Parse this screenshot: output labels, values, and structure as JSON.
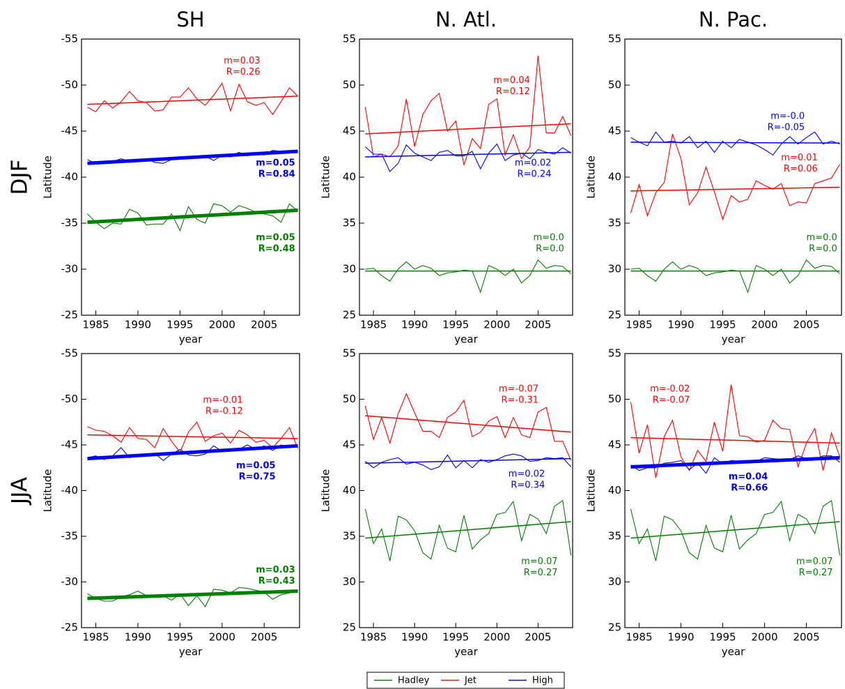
{
  "columns": [
    "SH",
    "N. Atl.",
    "N. Pac."
  ],
  "rows": [
    "DJF",
    "JJA"
  ],
  "legend": [
    "Hadley",
    "Jet",
    "High"
  ],
  "chart_data": [
    {
      "type": "line",
      "xlabel": "year",
      "ylabel": "Latitude",
      "x": [
        1984,
        1985,
        1986,
        1987,
        1988,
        1989,
        1990,
        1991,
        1992,
        1993,
        1994,
        1995,
        1996,
        1997,
        1998,
        1999,
        2000,
        2001,
        2002,
        2003,
        2004,
        2005,
        2006,
        2007,
        2008,
        2009
      ],
      "xlim": [
        1983.3,
        2009.2
      ],
      "xticks": [
        1985,
        1990,
        1995,
        2000,
        2005
      ],
      "ylim": [
        -25,
        -55
      ],
      "yticks": [
        -25,
        -30,
        -35,
        -40,
        -45,
        -50,
        -55
      ],
      "series": [
        {
          "color": "#008000",
          "bold": true,
          "values": [
            -36.0,
            -35.1,
            -34.4,
            -35.0,
            -34.9,
            -36.5,
            -36.1,
            -34.8,
            -34.9,
            -34.9,
            -36.0,
            -34.2,
            -36.8,
            -35.4,
            -35.0,
            -37.1,
            -36.9,
            -36.2,
            -36.9,
            -36.6,
            -36.2,
            -36.0,
            -35.8,
            -35.1,
            -37.1,
            -36.3
          ],
          "trend": [
            -35.1,
            -36.4
          ],
          "annotation": [
            "m=0.05",
            "R=0.48"
          ]
        },
        {
          "color": "#ff0000",
          "bold": false,
          "values": [
            -47.6,
            -47.1,
            -48.3,
            -47.5,
            -48.2,
            -49.3,
            -48.3,
            -48.1,
            -47.2,
            -47.3,
            -48.7,
            -48.7,
            -49.7,
            -48.5,
            -47.8,
            -48.9,
            -50.2,
            -47.2,
            -50.1,
            -48.2,
            -47.8,
            -48.1,
            -46.8,
            -48.2,
            -49.7,
            -48.8
          ],
          "trend": [
            -47.9,
            -48.8
          ],
          "annotation": [
            "m=0.03",
            "R=0.26"
          ]
        },
        {
          "color": "#0000ff",
          "bold": true,
          "values": [
            -41.9,
            -41.5,
            -41.7,
            -41.7,
            -42.0,
            -41.7,
            -41.8,
            -42.0,
            -41.6,
            -41.5,
            -41.9,
            -42.0,
            -42.0,
            -42.3,
            -42.3,
            -41.8,
            -42.4,
            -42.2,
            -42.7,
            -42.3,
            -42.6,
            -42.4,
            -42.9,
            -42.8,
            -42.8,
            -42.9
          ],
          "trend": [
            -41.5,
            -42.8
          ],
          "annotation": [
            "m=0.05",
            "R=0.84"
          ]
        }
      ]
    },
    {
      "type": "line",
      "xlabel": "year",
      "ylabel": "Latitude",
      "x": [
        1984,
        1985,
        1986,
        1987,
        1988,
        1989,
        1990,
        1991,
        1992,
        1993,
        1994,
        1995,
        1996,
        1997,
        1998,
        1999,
        2000,
        2001,
        2002,
        2003,
        2004,
        2005,
        2006,
        2007,
        2008,
        2009
      ],
      "xlim": [
        1983.3,
        2009.2
      ],
      "xticks": [
        1985,
        1990,
        1995,
        2000,
        2005
      ],
      "ylim": [
        25,
        55
      ],
      "yticks": [
        25,
        30,
        35,
        40,
        45,
        50,
        55
      ],
      "series": [
        {
          "color": "#008000",
          "bold": false,
          "values": [
            30.0,
            30.1,
            29.3,
            28.7,
            30.0,
            30.8,
            30.0,
            30.4,
            30.1,
            29.3,
            29.6,
            29.7,
            29.9,
            29.8,
            27.5,
            30.4,
            30.0,
            29.3,
            30.0,
            28.5,
            29.3,
            31.0,
            30.1,
            30.4,
            30.3,
            29.5
          ],
          "trend": [
            29.8,
            29.8
          ],
          "annotation": [
            "m=0.0",
            "R=0.0"
          ]
        },
        {
          "color": "#ff0000",
          "bold": false,
          "values": [
            47.6,
            42.2,
            42.5,
            42.2,
            43.4,
            48.5,
            43.3,
            46.8,
            48.3,
            49.1,
            45.0,
            46.1,
            41.3,
            44.2,
            43.1,
            47.9,
            48.5,
            42.4,
            44.6,
            42.0,
            43.3,
            53.2,
            44.8,
            44.8,
            46.6,
            44.5
          ],
          "trend": [
            44.7,
            45.8
          ],
          "annotation": [
            "m=0.04",
            "R=0.12"
          ]
        },
        {
          "color": "#0000ff",
          "bold": false,
          "values": [
            43.3,
            42.5,
            42.5,
            40.6,
            41.5,
            43.5,
            42.6,
            42.2,
            41.8,
            42.7,
            42.9,
            42.3,
            42.3,
            42.8,
            40.9,
            42.6,
            43.6,
            41.8,
            42.4,
            42.6,
            42.0,
            43.0,
            42.7,
            42.5,
            43.2,
            42.6
          ],
          "trend": [
            42.2,
            42.7
          ],
          "annotation": [
            "m=0.02",
            "R=0.24"
          ]
        }
      ]
    },
    {
      "type": "line",
      "xlabel": "year",
      "ylabel": "Latitude",
      "x": [
        1984,
        1985,
        1986,
        1987,
        1988,
        1989,
        1990,
        1991,
        1992,
        1993,
        1994,
        1995,
        1996,
        1997,
        1998,
        1999,
        2000,
        2001,
        2002,
        2003,
        2004,
        2005,
        2006,
        2007,
        2008,
        2009
      ],
      "xlim": [
        1983.3,
        2009.2
      ],
      "xticks": [
        1985,
        1990,
        1995,
        2000,
        2005
      ],
      "ylim": [
        25,
        55
      ],
      "yticks": [
        25,
        30,
        35,
        40,
        45,
        50,
        55
      ],
      "series": [
        {
          "color": "#008000",
          "bold": false,
          "values": [
            30.0,
            30.1,
            29.3,
            28.7,
            30.0,
            30.8,
            30.0,
            30.4,
            30.1,
            29.3,
            29.6,
            29.7,
            29.9,
            29.8,
            27.5,
            30.4,
            30.0,
            29.3,
            30.0,
            28.5,
            29.3,
            31.0,
            30.1,
            30.4,
            30.3,
            29.5
          ],
          "trend": [
            29.8,
            29.8
          ],
          "annotation": [
            "m=0.0",
            "R=0.0"
          ]
        },
        {
          "color": "#ff0000",
          "bold": false,
          "values": [
            36.1,
            39.2,
            35.8,
            38.3,
            39.4,
            44.7,
            42.0,
            37.0,
            38.3,
            41.1,
            38.4,
            35.4,
            38.0,
            37.3,
            37.6,
            39.6,
            39.1,
            38.7,
            39.3,
            36.9,
            37.3,
            37.2,
            39.3,
            39.6,
            39.9,
            41.4
          ],
          "trend": [
            38.5,
            38.9
          ],
          "annotation": [
            "m=0.01",
            "R=0.06"
          ]
        },
        {
          "color": "#0000ff",
          "bold": false,
          "values": [
            44.3,
            43.8,
            43.4,
            44.9,
            43.8,
            43.9,
            43.7,
            44.4,
            43.2,
            43.9,
            42.7,
            43.9,
            43.2,
            44.1,
            43.8,
            43.5,
            43.0,
            42.4,
            43.6,
            44.4,
            43.6,
            44.3,
            44.9,
            43.6,
            43.9,
            43.6
          ],
          "trend": [
            43.8,
            43.7
          ],
          "annotation": [
            "m=-0.0",
            "R=-0.05"
          ]
        }
      ]
    },
    {
      "type": "line",
      "xlabel": "year",
      "ylabel": "Latitude",
      "x": [
        1984,
        1985,
        1986,
        1987,
        1988,
        1989,
        1990,
        1991,
        1992,
        1993,
        1994,
        1995,
        1996,
        1997,
        1998,
        1999,
        2000,
        2001,
        2002,
        2003,
        2004,
        2005,
        2006,
        2007,
        2008,
        2009
      ],
      "xlim": [
        1983.3,
        2009.2
      ],
      "xticks": [
        1985,
        1990,
        1995,
        2000,
        2005
      ],
      "ylim": [
        -25,
        -55
      ],
      "yticks": [
        -25,
        -30,
        -35,
        -40,
        -45,
        -50,
        -55
      ],
      "series": [
        {
          "color": "#008000",
          "bold": true,
          "values": [
            -28.7,
            -28.2,
            -27.9,
            -27.9,
            -28.4,
            -28.6,
            -29.0,
            -28.5,
            -28.3,
            -28.5,
            -28.0,
            -28.7,
            -27.4,
            -28.5,
            -27.3,
            -29.2,
            -29.1,
            -28.8,
            -29.4,
            -29.3,
            -29.1,
            -28.9,
            -28.1,
            -28.6,
            -28.8,
            -29.1
          ],
          "trend": [
            -28.2,
            -29.0
          ],
          "annotation": [
            "m=0.03",
            "R=0.43"
          ]
        },
        {
          "color": "#ff0000",
          "bold": false,
          "values": [
            -47.0,
            -46.6,
            -46.5,
            -46.0,
            -45.3,
            -46.9,
            -45.7,
            -45.6,
            -44.7,
            -46.8,
            -45.4,
            -44.2,
            -46.4,
            -47.5,
            -45.4,
            -46.0,
            -46.3,
            -45.2,
            -46.6,
            -46.1,
            -45.3,
            -45.5,
            -44.7,
            -45.7,
            -46.9,
            -44.6
          ],
          "trend": [
            -46.1,
            -45.7
          ],
          "annotation": [
            "m=-0.01",
            "R=-0.12"
          ]
        },
        {
          "color": "#0000ff",
          "bold": true,
          "values": [
            -43.6,
            -43.8,
            -43.4,
            -43.8,
            -44.7,
            -43.6,
            -43.8,
            -43.8,
            -44.1,
            -43.3,
            -44.0,
            -44.5,
            -43.9,
            -43.8,
            -44.0,
            -44.9,
            -44.3,
            -44.3,
            -44.5,
            -45.0,
            -44.5,
            -44.9,
            -44.4,
            -45.0,
            -44.7,
            -45.0
          ],
          "trend": [
            -43.5,
            -44.9
          ],
          "annotation": [
            "m=0.05",
            "R=0.75"
          ]
        }
      ]
    },
    {
      "type": "line",
      "xlabel": "year",
      "ylabel": "Latitude",
      "x": [
        1984,
        1985,
        1986,
        1987,
        1988,
        1989,
        1990,
        1991,
        1992,
        1993,
        1994,
        1995,
        1996,
        1997,
        1998,
        1999,
        2000,
        2001,
        2002,
        2003,
        2004,
        2005,
        2006,
        2007,
        2008,
        2009
      ],
      "xlim": [
        1983.3,
        2009.2
      ],
      "xticks": [
        1985,
        1990,
        1995,
        2000,
        2005
      ],
      "ylim": [
        25,
        55
      ],
      "yticks": [
        25,
        30,
        35,
        40,
        45,
        50,
        55
      ],
      "series": [
        {
          "color": "#008000",
          "bold": false,
          "values": [
            38.0,
            34.2,
            35.8,
            32.3,
            37.2,
            36.8,
            35.6,
            33.2,
            32.5,
            36.2,
            33.7,
            33.3,
            37.3,
            33.6,
            34.6,
            35.3,
            37.4,
            37.6,
            38.8,
            34.5,
            37.4,
            36.9,
            35.3,
            38.3,
            38.9,
            32.9
          ],
          "trend": [
            34.8,
            36.6
          ],
          "annotation": [
            "m=0.07",
            "R=0.27"
          ]
        },
        {
          "color": "#ff0000",
          "bold": false,
          "values": [
            49.3,
            45.6,
            48.0,
            45.2,
            48.4,
            50.6,
            48.5,
            46.5,
            46.5,
            45.8,
            48.0,
            48.6,
            49.9,
            45.9,
            46.4,
            47.6,
            48.1,
            45.8,
            48.0,
            46.1,
            45.8,
            48.6,
            49.1,
            45.4,
            45.4,
            43.3
          ],
          "trend": [
            48.2,
            46.4
          ],
          "annotation": [
            "m=-0.07",
            "R=-0.31"
          ]
        },
        {
          "color": "#0000ff",
          "bold": false,
          "values": [
            43.2,
            42.5,
            43.1,
            43.4,
            43.6,
            42.9,
            43.1,
            42.8,
            42.3,
            42.6,
            43.9,
            42.5,
            43.3,
            42.5,
            43.4,
            43.1,
            43.4,
            43.8,
            44.0,
            43.8,
            43.2,
            43.3,
            43.6,
            43.5,
            43.6,
            42.6
          ],
          "trend": [
            43.0,
            43.5
          ],
          "annotation": [
            "m=0.02",
            "R=0.34"
          ]
        }
      ]
    },
    {
      "type": "line",
      "xlabel": "year",
      "ylabel": "Latitude",
      "x": [
        1984,
        1985,
        1986,
        1987,
        1988,
        1989,
        1990,
        1991,
        1992,
        1993,
        1994,
        1995,
        1996,
        1997,
        1998,
        1999,
        2000,
        2001,
        2002,
        2003,
        2004,
        2005,
        2006,
        2007,
        2008,
        2009
      ],
      "xlim": [
        1983.3,
        2009.2
      ],
      "xticks": [
        1985,
        1990,
        1995,
        2000,
        2005
      ],
      "ylim": [
        25,
        55
      ],
      "yticks": [
        25,
        30,
        35,
        40,
        45,
        50,
        55
      ],
      "series": [
        {
          "color": "#008000",
          "bold": false,
          "values": [
            38.0,
            34.2,
            35.8,
            32.3,
            37.2,
            36.8,
            35.6,
            33.2,
            32.5,
            36.2,
            33.7,
            33.3,
            37.3,
            33.6,
            34.6,
            35.3,
            37.4,
            37.6,
            38.8,
            34.5,
            37.4,
            36.9,
            35.3,
            38.3,
            38.9,
            32.9
          ],
          "trend": [
            34.8,
            36.6
          ],
          "annotation": [
            "m=0.07",
            "R=0.27"
          ]
        },
        {
          "color": "#ff0000",
          "bold": false,
          "values": [
            49.7,
            44.1,
            47.2,
            41.4,
            45.9,
            47.7,
            43.7,
            42.2,
            44.4,
            43.2,
            47.5,
            44.3,
            51.6,
            46.0,
            45.9,
            45.3,
            45.5,
            47.7,
            46.8,
            46.7,
            42.6,
            45.2,
            46.8,
            42.2,
            46.3,
            43.7
          ],
          "trend": [
            45.8,
            45.2
          ],
          "annotation": [
            "m=-0.02",
            "R=-0.07"
          ]
        },
        {
          "color": "#0000ff",
          "bold": true,
          "values": [
            42.8,
            42.2,
            42.5,
            42.5,
            43.0,
            43.1,
            43.3,
            42.3,
            43.0,
            41.9,
            43.6,
            42.9,
            43.3,
            43.2,
            43.1,
            43.2,
            43.6,
            43.5,
            43.4,
            43.4,
            43.8,
            43.5,
            43.4,
            43.8,
            43.8,
            43.1
          ],
          "trend": [
            42.6,
            43.6
          ],
          "annotation": [
            "m=0.04",
            "R=0.66"
          ]
        }
      ]
    }
  ]
}
